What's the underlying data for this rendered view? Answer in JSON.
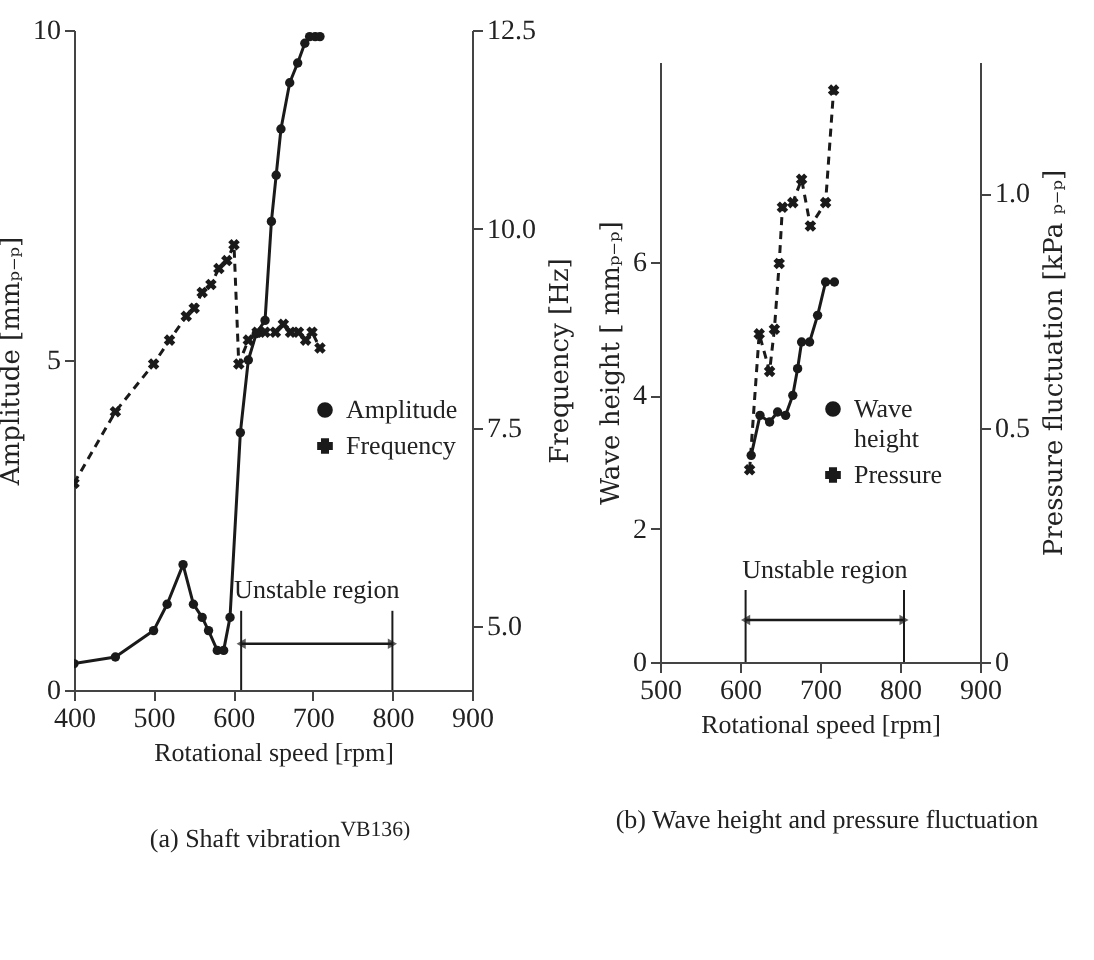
{
  "chart_data": [
    {
      "type": "line",
      "title": "(a) Shaft vibration$^{VB136)}$",
      "xlabel": "Rotational speed     [rpm]",
      "ylabel": "Amplitude   [mmₚ₋ₚ]",
      "y2label": "Frequency   [Hz]",
      "xlim": [
        400,
        900
      ],
      "xticks": [
        400,
        500,
        600,
        700,
        800,
        900
      ],
      "ylim": [
        0,
        10
      ],
      "yticks": [
        0,
        5,
        10
      ],
      "y2lim": [
        4.2,
        12.5
      ],
      "y2ticks": [
        {
          "value": 5,
          "label": "5.0"
        },
        {
          "value": 7.5,
          "label": "7.5"
        },
        {
          "value": 10,
          "label": "10.0"
        },
        {
          "value": 12.5,
          "label": "12.5"
        }
      ],
      "legend": "right",
      "grid": false,
      "series": [
        {
          "name": "Amplitude",
          "color": "#1a1a1a",
          "marker": "circle",
          "line_style": "solid",
          "x": [
            400,
            452,
            500,
            517,
            537,
            550,
            561,
            569,
            580,
            588,
            596,
            609,
            619,
            629,
            640,
            648,
            654,
            660,
            671,
            681,
            690,
            696,
            703,
            709
          ],
          "values": [
            0.4,
            0.5,
            0.9,
            1.3,
            1.9,
            1.3,
            1.1,
            0.9,
            0.6,
            0.6,
            1.1,
            3.9,
            5.0,
            5.4,
            5.6,
            7.1,
            7.8,
            8.5,
            9.2,
            9.5,
            9.8,
            9.9,
            9.9,
            9.9
          ]
        },
        {
          "name": "Frequency",
          "color": "#1a1a1a",
          "marker": "cross",
          "line_style": "dashed",
          "axis": "y2",
          "x": [
            400,
            452,
            500,
            520,
            541,
            551,
            561,
            572,
            582,
            592,
            601,
            607,
            619,
            630,
            640,
            653,
            663,
            672,
            682,
            691,
            699,
            709
          ],
          "values": [
            6.8,
            7.7,
            8.3,
            8.6,
            8.9,
            9.0,
            9.2,
            9.3,
            9.5,
            9.6,
            9.8,
            8.3,
            8.6,
            8.7,
            8.7,
            8.7,
            8.8,
            8.7,
            8.7,
            8.6,
            8.7,
            8.5
          ]
        }
      ],
      "ref_lines": [
        {
          "axis": "x",
          "value": 610,
          "color": "#1a1a1a"
        },
        {
          "axis": "x",
          "value": 800,
          "color": "#1a1a1a"
        }
      ],
      "annotations": [
        "Unstable region"
      ]
    },
    {
      "type": "line",
      "title": "(b) Wave height and pressure fluctuation",
      "xlabel": "Rotational speed     [rpm]",
      "ylabel": "Wave height   [ mmₚ₋ₚ]",
      "y2label": "Pressure fluctuation   [kPa ₚ₋ₚ]",
      "xlim": [
        500,
        900
      ],
      "xticks": [
        500,
        600,
        700,
        800,
        900
      ],
      "ylim": [
        0,
        9
      ],
      "yticks": [
        0,
        2,
        4,
        6
      ],
      "y2lim": [
        0,
        1.28
      ],
      "y2ticks": [
        0,
        0.5,
        {
          "value": 1,
          "label": "1.0"
        }
      ],
      "legend": "right",
      "grid": false,
      "series": [
        {
          "name": "Wave height",
          "color": "#1a1a1a",
          "marker": "circle",
          "line_style": "solid",
          "x": [
            614,
            625,
            637,
            647,
            657,
            666,
            672,
            677,
            687,
            697,
            707,
            718
          ],
          "values": [
            3.1,
            3.7,
            3.6,
            3.75,
            3.7,
            4.0,
            4.4,
            4.8,
            4.8,
            5.2,
            5.7,
            5.7
          ]
        },
        {
          "name": "Pressure",
          "color": "#1a1a1a",
          "marker": "cross",
          "line_style": "dashed",
          "axis": "y2",
          "x": [
            612,
            624,
            637,
            643,
            649,
            653,
            666,
            677,
            688,
            707,
            717
          ],
          "values": [
            0.41,
            0.7,
            0.62,
            0.71,
            0.85,
            0.97,
            0.98,
            1.03,
            0.93,
            0.98,
            1.22
          ]
        }
      ],
      "ref_lines": [
        {
          "axis": "x",
          "value": 607,
          "color": "#1a1a1a"
        },
        {
          "axis": "x",
          "value": 805,
          "color": "#1a1a1a"
        }
      ],
      "annotations": [
        "Unstable region"
      ]
    }
  ]
}
